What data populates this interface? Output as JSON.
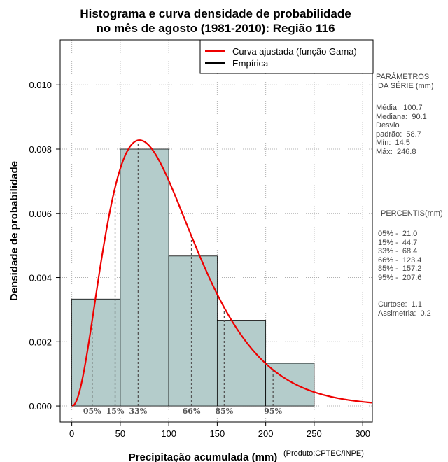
{
  "chart_data": {
    "type": "bar",
    "title_line1": "Histograma e curva densidade de probabilidade",
    "title_line2": "no mês de agosto (1981-2010): Região 116",
    "xlabel": "Precipitação acumulada (mm)",
    "ylabel": "Densidade de probabilidade",
    "credit": "(Produto:CPTEC/INPE)",
    "xlim": [
      -12,
      310
    ],
    "ylim": [
      -0.0005,
      0.0114
    ],
    "x_ticks": [
      0,
      50,
      100,
      150,
      200,
      250,
      300
    ],
    "y_ticks": [
      0.0,
      0.002,
      0.004,
      0.006,
      0.008,
      0.01
    ],
    "y_tick_labels": [
      "0.000",
      "0.002",
      "0.004",
      "0.006",
      "0.008",
      "0.010"
    ],
    "bins": [
      {
        "from": 0,
        "to": 50,
        "density": 0.00333
      },
      {
        "from": 50,
        "to": 100,
        "density": 0.008
      },
      {
        "from": 100,
        "to": 150,
        "density": 0.00467
      },
      {
        "from": 150,
        "to": 200,
        "density": 0.00267
      },
      {
        "from": 200,
        "to": 250,
        "density": 0.00133
      }
    ],
    "gamma_curve": {
      "shape": 3.26,
      "scale": 30.9
    },
    "legend": {
      "fitted": "Curva ajustada (função Gama)",
      "empirical": "Empírica",
      "placement": "top-right"
    },
    "percentile_markers": [
      {
        "label": "05%",
        "value": 21.0
      },
      {
        "label": "15%",
        "value": 44.7
      },
      {
        "label": "33%",
        "value": 68.4
      },
      {
        "label": "66%",
        "value": 123.4
      },
      {
        "label": "85%",
        "value": 157.2
      },
      {
        "label": "95%",
        "value": 207.6
      }
    ],
    "colors": {
      "bars": "#b4cccb",
      "curve": "#ee0000",
      "grid": "#b0b0b0",
      "markers": "#555555"
    }
  },
  "side_panel": {
    "params_title": "PARÂMETROS\n DA SÉRIE (mm)",
    "params_body": "Média:  100.7\nMediana:  90.1\nDesvio\npadrão:  58.7\nMín:  14.5\nMáx:  246.8",
    "percentis_title": "PERCENTIS(mm)",
    "percentis_body": "05% -  21.0\n15% -  44.7\n33% -  68.4\n66% -  123.4\n85% -  157.2\n95% -  207.6",
    "stats_body": "Curtose:  1.1\nAssimetria:  0.2"
  }
}
